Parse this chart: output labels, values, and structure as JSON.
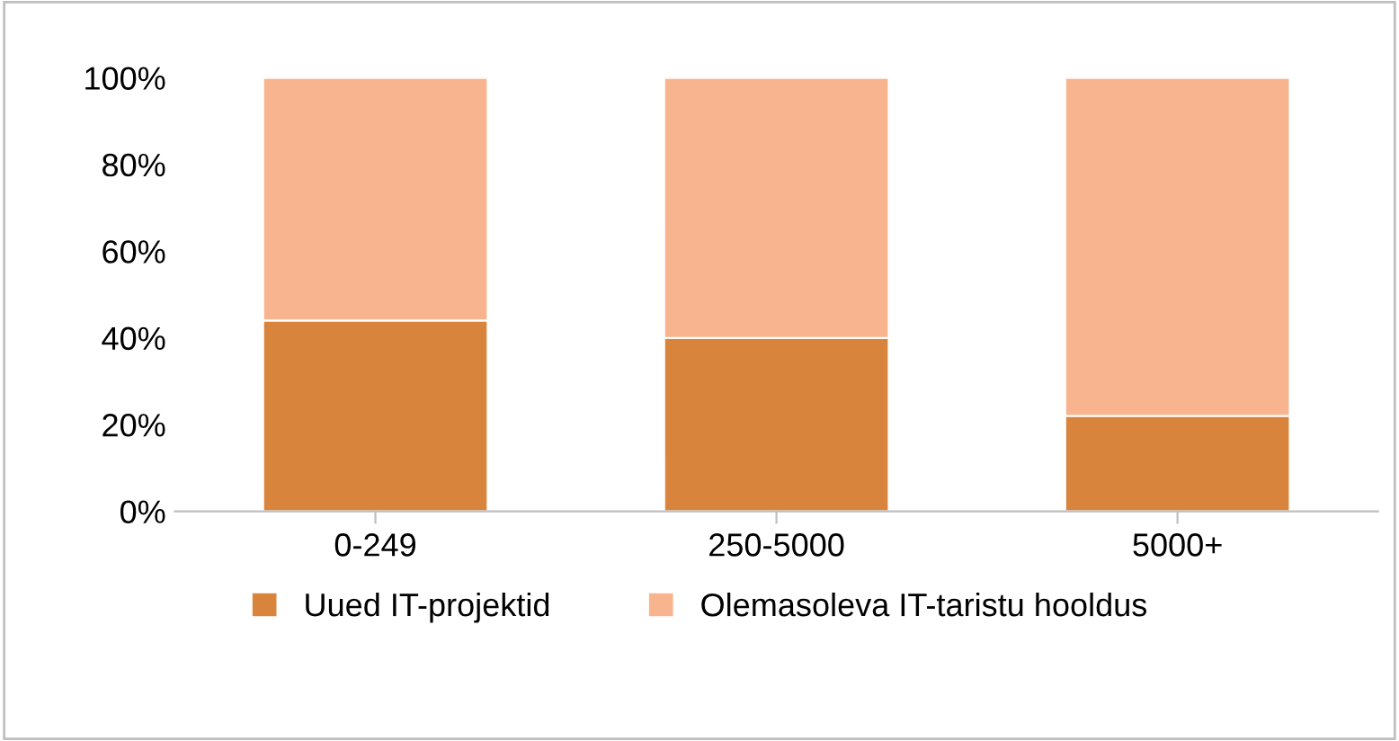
{
  "chart_data": {
    "type": "bar",
    "stacked": true,
    "categories": [
      "0-249",
      "250-5000",
      "5000+"
    ],
    "series": [
      {
        "name": "Uued IT-projektid",
        "color": "#d9843c",
        "values": [
          44,
          40,
          22
        ]
      },
      {
        "name": "Olemasoleva IT-taristu hooldus",
        "color": "#f8b48e",
        "values": [
          56,
          60,
          78
        ]
      }
    ],
    "ylim": [
      0,
      100
    ],
    "yticks": [
      {
        "value": 0,
        "label": "0%"
      },
      {
        "value": 20,
        "label": "20%"
      },
      {
        "value": 40,
        "label": "40%"
      },
      {
        "value": 60,
        "label": "60%"
      },
      {
        "value": 80,
        "label": "80%"
      },
      {
        "value": 100,
        "label": "100%"
      }
    ],
    "grid": false,
    "legend": "bottom"
  }
}
